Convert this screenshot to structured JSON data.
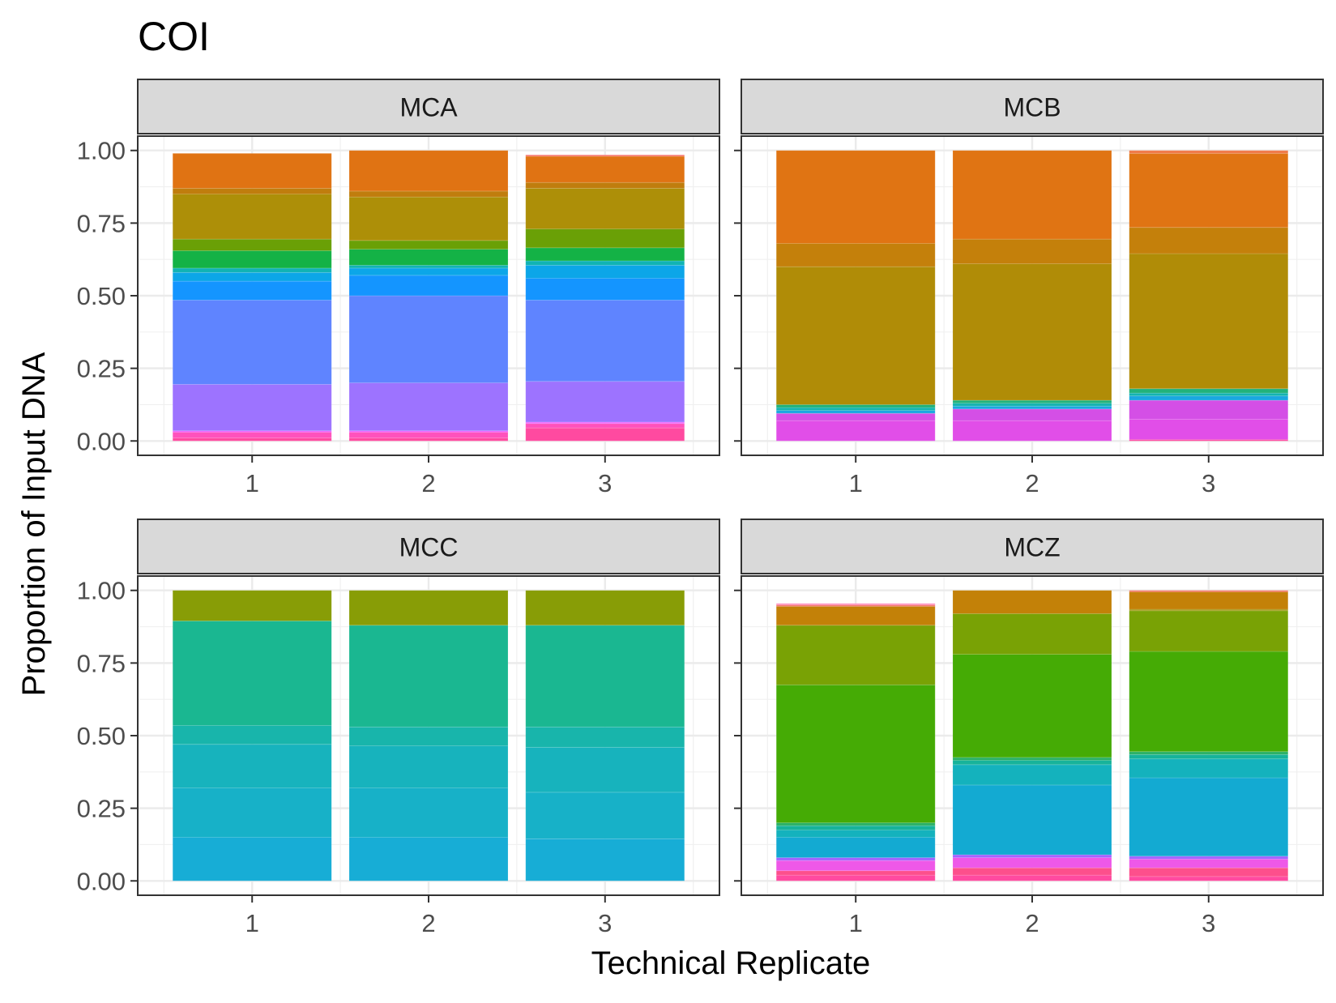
{
  "chart_data": {
    "type": "bar",
    "subtype": "stacked-faceted",
    "title": "COI",
    "xlabel": "Technical Replicate",
    "ylabel": "Proportion of Input DNA",
    "ylim": [
      0,
      1
    ],
    "y_ticks": [
      "0.00",
      "0.25",
      "0.50",
      "0.75",
      "1.00"
    ],
    "y_tick_values": [
      0,
      0.25,
      0.5,
      0.75,
      1.0
    ],
    "categories": [
      "1",
      "2",
      "3"
    ],
    "grid": true,
    "legend": "none",
    "facets": [
      {
        "label": "MCA",
        "bars": [
          {
            "x": "1",
            "segments": [
              {
                "value": 0.01,
                "color": "#ff4aa0"
              },
              {
                "value": 0.02,
                "color": "#ff52bc"
              },
              {
                "value": 0.005,
                "color": "#ee61ff"
              },
              {
                "value": 0.16,
                "color": "#9d73ff"
              },
              {
                "value": 0.29,
                "color": "#5f84ff"
              },
              {
                "value": 0.065,
                "color": "#1495ff"
              },
              {
                "value": 0.03,
                "color": "#0ca6e8"
              },
              {
                "value": 0.015,
                "color": "#11b3b4"
              },
              {
                "value": 0.06,
                "color": "#14b246"
              },
              {
                "value": 0.04,
                "color": "#6aa006"
              },
              {
                "value": 0.155,
                "color": "#ad8f08"
              },
              {
                "value": 0.02,
                "color": "#c07d0d"
              },
              {
                "value": 0.12,
                "color": "#e07313"
              }
            ]
          },
          {
            "x": "2",
            "segments": [
              {
                "value": 0.01,
                "color": "#ff4aa0"
              },
              {
                "value": 0.02,
                "color": "#ff52bc"
              },
              {
                "value": 0.005,
                "color": "#ee61ff"
              },
              {
                "value": 0.165,
                "color": "#9d73ff"
              },
              {
                "value": 0.3,
                "color": "#5f84ff"
              },
              {
                "value": 0.07,
                "color": "#1495ff"
              },
              {
                "value": 0.025,
                "color": "#0ca6e8"
              },
              {
                "value": 0.01,
                "color": "#11b3b4"
              },
              {
                "value": 0.055,
                "color": "#14b246"
              },
              {
                "value": 0.03,
                "color": "#6aa006"
              },
              {
                "value": 0.15,
                "color": "#ad8f08"
              },
              {
                "value": 0.02,
                "color": "#c07d0d"
              },
              {
                "value": 0.14,
                "color": "#e07313"
              }
            ]
          },
          {
            "x": "3",
            "segments": [
              {
                "value": 0.045,
                "color": "#ff4aa0"
              },
              {
                "value": 0.015,
                "color": "#ff52bc"
              },
              {
                "value": 0.005,
                "color": "#ee61ff"
              },
              {
                "value": 0.14,
                "color": "#9d73ff"
              },
              {
                "value": 0.28,
                "color": "#5f84ff"
              },
              {
                "value": 0.075,
                "color": "#1495ff"
              },
              {
                "value": 0.045,
                "color": "#0ca6e8"
              },
              {
                "value": 0.015,
                "color": "#11b3b4"
              },
              {
                "value": 0.045,
                "color": "#14b246"
              },
              {
                "value": 0.065,
                "color": "#6aa006"
              },
              {
                "value": 0.14,
                "color": "#ad8f08"
              },
              {
                "value": 0.02,
                "color": "#c07d0d"
              },
              {
                "value": 0.09,
                "color": "#e07313"
              },
              {
                "value": 0.005,
                "color": "#f8766d"
              }
            ]
          }
        ]
      },
      {
        "label": "MCB",
        "bars": [
          {
            "x": "1",
            "segments": [
              {
                "value": 0.07,
                "color": "#e14ee8"
              },
              {
                "value": 0.025,
                "color": "#d44fe6"
              },
              {
                "value": 0.01,
                "color": "#1aa7e0"
              },
              {
                "value": 0.01,
                "color": "#14b4b0"
              },
              {
                "value": 0.01,
                "color": "#22b27a"
              },
              {
                "value": 0.475,
                "color": "#b08c07"
              },
              {
                "value": 0.08,
                "color": "#c4800b"
              },
              {
                "value": 0.32,
                "color": "#e07413"
              }
            ]
          },
          {
            "x": "2",
            "segments": [
              {
                "value": 0.07,
                "color": "#e14ee8"
              },
              {
                "value": 0.04,
                "color": "#d44fe6"
              },
              {
                "value": 0.01,
                "color": "#1aa7e0"
              },
              {
                "value": 0.01,
                "color": "#14b4b0"
              },
              {
                "value": 0.01,
                "color": "#22b27a"
              },
              {
                "value": 0.47,
                "color": "#b08c07"
              },
              {
                "value": 0.085,
                "color": "#c4800b"
              },
              {
                "value": 0.305,
                "color": "#e07413"
              }
            ]
          },
          {
            "x": "3",
            "segments": [
              {
                "value": 0.005,
                "color": "#ff4aa0"
              },
              {
                "value": 0.07,
                "color": "#e14ee8"
              },
              {
                "value": 0.065,
                "color": "#d44fe6"
              },
              {
                "value": 0.015,
                "color": "#1aa7e0"
              },
              {
                "value": 0.01,
                "color": "#14b4b0"
              },
              {
                "value": 0.015,
                "color": "#22b27a"
              },
              {
                "value": 0.465,
                "color": "#b08c07"
              },
              {
                "value": 0.09,
                "color": "#c4800b"
              },
              {
                "value": 0.255,
                "color": "#e07413"
              },
              {
                "value": 0.01,
                "color": "#f07a4a"
              }
            ]
          }
        ]
      },
      {
        "label": "MCC",
        "bars": [
          {
            "x": "1",
            "segments": [
              {
                "value": 0.15,
                "color": "#17add6"
              },
              {
                "value": 0.17,
                "color": "#17b1c8"
              },
              {
                "value": 0.15,
                "color": "#17b3bd"
              },
              {
                "value": 0.065,
                "color": "#18b5ab"
              },
              {
                "value": 0.36,
                "color": "#1ab791"
              },
              {
                "value": 0.105,
                "color": "#889d06"
              }
            ]
          },
          {
            "x": "2",
            "segments": [
              {
                "value": 0.15,
                "color": "#17add6"
              },
              {
                "value": 0.17,
                "color": "#17b1c8"
              },
              {
                "value": 0.145,
                "color": "#17b3bd"
              },
              {
                "value": 0.065,
                "color": "#18b5ab"
              },
              {
                "value": 0.35,
                "color": "#1ab791"
              },
              {
                "value": 0.12,
                "color": "#889d06"
              }
            ]
          },
          {
            "x": "3",
            "segments": [
              {
                "value": 0.145,
                "color": "#17add6"
              },
              {
                "value": 0.16,
                "color": "#17b1c8"
              },
              {
                "value": 0.155,
                "color": "#17b3bd"
              },
              {
                "value": 0.07,
                "color": "#18b5ab"
              },
              {
                "value": 0.35,
                "color": "#1ab791"
              },
              {
                "value": 0.12,
                "color": "#889d06"
              }
            ]
          }
        ]
      },
      {
        "label": "MCZ",
        "bars": [
          {
            "x": "1",
            "segments": [
              {
                "value": 0.02,
                "color": "#ff4aa0"
              },
              {
                "value": 0.015,
                "color": "#fd4f8c"
              },
              {
                "value": 0.035,
                "color": "#ee58e8"
              },
              {
                "value": 0.01,
                "color": "#a463ff"
              },
              {
                "value": 0.07,
                "color": "#13aad2"
              },
              {
                "value": 0.025,
                "color": "#14b2bd"
              },
              {
                "value": 0.015,
                "color": "#17b39a"
              },
              {
                "value": 0.01,
                "color": "#2bb166"
              },
              {
                "value": 0.475,
                "color": "#45ab05"
              },
              {
                "value": 0.205,
                "color": "#79a205"
              },
              {
                "value": 0.065,
                "color": "#c38108"
              },
              {
                "value": 0.005,
                "color": "#f4756a"
              },
              {
                "value": 0.005,
                "color": "#ff8bbc"
              }
            ]
          },
          {
            "x": "2",
            "segments": [
              {
                "value": 0.02,
                "color": "#ff4aa0"
              },
              {
                "value": 0.025,
                "color": "#fd4f8c"
              },
              {
                "value": 0.035,
                "color": "#ee58e8"
              },
              {
                "value": 0.01,
                "color": "#a463ff"
              },
              {
                "value": 0.24,
                "color": "#13aad2"
              },
              {
                "value": 0.07,
                "color": "#14b2bd"
              },
              {
                "value": 0.015,
                "color": "#17b39a"
              },
              {
                "value": 0.01,
                "color": "#2bb166"
              },
              {
                "value": 0.355,
                "color": "#45ab05"
              },
              {
                "value": 0.14,
                "color": "#79a205"
              },
              {
                "value": 0.08,
                "color": "#c38108"
              }
            ]
          },
          {
            "x": "3",
            "segments": [
              {
                "value": 0.015,
                "color": "#ff4aa0"
              },
              {
                "value": 0.03,
                "color": "#fd4f8c"
              },
              {
                "value": 0.03,
                "color": "#ee58e8"
              },
              {
                "value": 0.01,
                "color": "#a463ff"
              },
              {
                "value": 0.27,
                "color": "#13aad2"
              },
              {
                "value": 0.065,
                "color": "#14b2bd"
              },
              {
                "value": 0.015,
                "color": "#17b39a"
              },
              {
                "value": 0.01,
                "color": "#2bb166"
              },
              {
                "value": 0.345,
                "color": "#45ab05"
              },
              {
                "value": 0.14,
                "color": "#79a205"
              },
              {
                "value": 0.005,
                "color": "#a0950a"
              },
              {
                "value": 0.06,
                "color": "#c38108"
              },
              {
                "value": 0.005,
                "color": "#f4756a"
              }
            ]
          }
        ]
      }
    ]
  }
}
